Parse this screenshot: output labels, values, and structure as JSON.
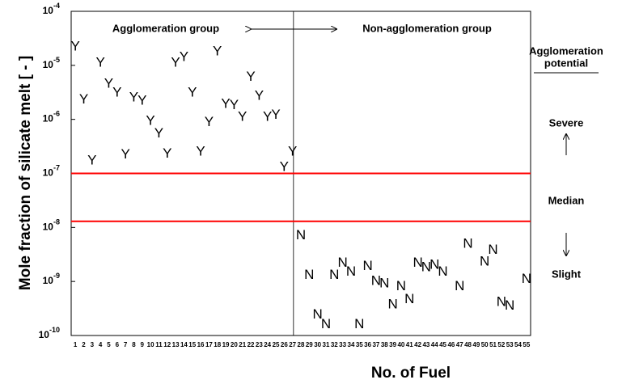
{
  "chart_data": {
    "type": "scatter",
    "x_label": "No. of Fuel",
    "y_label": "Mole fraction of silicate melt [ - ]",
    "log_y": true,
    "categories": [
      "1",
      "2",
      "3",
      "4",
      "5",
      "6",
      "7",
      "8",
      "9",
      "10",
      "11",
      "12",
      "13",
      "14",
      "15",
      "16",
      "17",
      "18",
      "19",
      "20",
      "21",
      "22",
      "23",
      "24",
      "25",
      "26",
      "27",
      "28",
      "29",
      "30",
      "31",
      "32",
      "33",
      "34",
      "35",
      "36",
      "37",
      "38",
      "39",
      "40",
      "41",
      "42",
      "43",
      "44",
      "45",
      "46",
      "47",
      "48",
      "49",
      "50",
      "51",
      "52",
      "53",
      "54",
      "55"
    ],
    "series": [
      {
        "name": "Y",
        "color": "#000000",
        "values": [
          2.2e-05,
          2.3e-06,
          1.7e-07,
          1.1e-05,
          4.5e-06,
          3.1e-06,
          2.2e-07,
          2.5e-06,
          2.2e-06,
          9.3e-07,
          5.4e-07,
          2.3e-07,
          1.1e-05,
          1.4e-05,
          3.1e-06,
          2.5e-07,
          8.7e-07,
          1.8e-05,
          1.9e-06,
          1.8e-06,
          1.1e-06,
          6e-06,
          2.7e-06,
          1.1e-06,
          1.2e-06,
          1.3e-07,
          2.5e-07,
          null,
          null,
          null,
          null,
          null,
          null,
          null,
          null,
          null,
          null,
          null,
          null,
          null,
          null,
          null,
          null,
          null,
          null,
          null,
          null,
          null,
          null,
          null,
          null,
          null,
          null,
          null,
          null
        ]
      },
      {
        "name": "N",
        "color": "#000000",
        "values": [
          null,
          null,
          null,
          null,
          null,
          null,
          null,
          null,
          null,
          null,
          null,
          null,
          null,
          null,
          null,
          null,
          null,
          null,
          null,
          null,
          null,
          null,
          null,
          null,
          null,
          null,
          null,
          7.1e-09,
          1.3e-09,
          2.4e-10,
          1.6e-10,
          1.3e-09,
          2.2e-09,
          1.5e-09,
          1.6e-10,
          1.9e-09,
          1e-09,
          9.1e-10,
          3.7e-10,
          8.1e-10,
          4.6e-10,
          2.2e-09,
          1.8e-09,
          2e-09,
          1.5e-09,
          null,
          8.1e-10,
          4.9e-09,
          null,
          2.3e-09,
          3.8e-09,
          4.1e-10,
          3.5e-10,
          null,
          1.1e-09
        ]
      }
    ],
    "ylim": [
      1e-10,
      0.0001
    ],
    "yticks": [
      {
        "value": 1e-10,
        "label": "10",
        "sup": "-10"
      },
      {
        "value": 1e-09,
        "label": "10",
        "sup": "-9"
      },
      {
        "value": 1e-08,
        "label": "10",
        "sup": "-8"
      },
      {
        "value": 1e-07,
        "label": "10",
        "sup": "-7"
      },
      {
        "value": 1e-06,
        "label": "10",
        "sup": "-6"
      },
      {
        "value": 1e-05,
        "label": "10",
        "sup": "-5"
      },
      {
        "value": 0.0001,
        "label": "10",
        "sup": "-4"
      }
    ],
    "thresholds": [
      1e-07,
      1.3e-08
    ],
    "threshold_color": "#ff0000",
    "annotations": {
      "left_group": "Agglomeration group",
      "right_group": "Non-agglomeration group",
      "potential_title": [
        "Agglomeration",
        "potential"
      ],
      "severe": "Severe",
      "median": "Median",
      "slight": "Slight"
    }
  }
}
